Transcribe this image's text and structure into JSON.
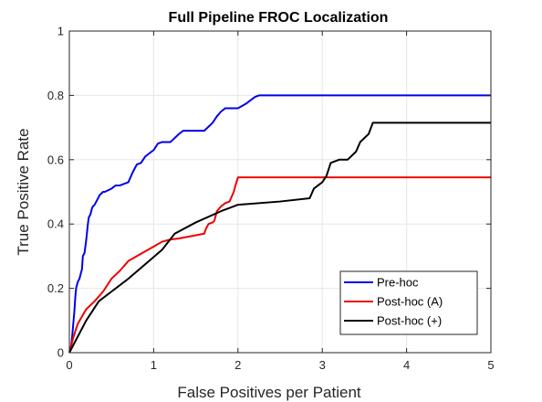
{
  "chart_data": {
    "type": "line",
    "title": "Full Pipeline FROC Localization",
    "xlabel": "False Positives per Patient",
    "ylabel": "True Positive Rate",
    "xlim": [
      0,
      5
    ],
    "ylim": [
      0,
      1
    ],
    "xticks": [
      0,
      1,
      2,
      3,
      4,
      5
    ],
    "yticks": [
      0,
      0.2,
      0.4,
      0.6,
      0.8,
      1
    ],
    "ytick_labels": [
      "0",
      "0.2",
      "0.4",
      "0.6",
      "0.8",
      "1"
    ],
    "grid": true,
    "legend_position": "bottom-right",
    "series": [
      {
        "name": "Pre-hoc",
        "color": "#0000ee",
        "x": [
          0,
          0.02,
          0.03,
          0.04,
          0.05,
          0.06,
          0.07,
          0.08,
          0.1,
          0.12,
          0.13,
          0.15,
          0.16,
          0.18,
          0.2,
          0.22,
          0.23,
          0.25,
          0.26,
          0.27,
          0.28,
          0.3,
          0.32,
          0.34,
          0.36,
          0.38,
          0.4,
          0.42,
          0.5,
          0.55,
          0.6,
          0.7,
          0.75,
          0.8,
          0.85,
          0.9,
          0.95,
          1.0,
          1.05,
          1.1,
          1.2,
          1.3,
          1.35,
          1.6,
          1.7,
          1.75,
          1.8,
          1.85,
          2.0,
          2.1,
          2.2,
          2.25,
          5.0
        ],
        "y": [
          0,
          0.02,
          0.04,
          0.07,
          0.1,
          0.13,
          0.17,
          0.2,
          0.22,
          0.23,
          0.24,
          0.26,
          0.3,
          0.31,
          0.35,
          0.4,
          0.42,
          0.43,
          0.44,
          0.45,
          0.455,
          0.46,
          0.47,
          0.48,
          0.49,
          0.495,
          0.5,
          0.5,
          0.51,
          0.52,
          0.52,
          0.53,
          0.56,
          0.585,
          0.59,
          0.61,
          0.62,
          0.63,
          0.65,
          0.655,
          0.655,
          0.68,
          0.69,
          0.69,
          0.715,
          0.735,
          0.75,
          0.76,
          0.76,
          0.775,
          0.795,
          0.8,
          0.8
        ]
      },
      {
        "name": "Post-hoc (A)",
        "color": "#ee0000",
        "x": [
          0,
          0.05,
          0.1,
          0.2,
          0.3,
          0.4,
          0.5,
          0.6,
          0.7,
          0.8,
          0.9,
          1.0,
          1.1,
          1.2,
          1.3,
          1.5,
          1.6,
          1.62,
          1.65,
          1.7,
          1.72,
          1.75,
          1.8,
          1.85,
          1.9,
          1.95,
          1.97,
          2.0,
          5.0
        ],
        "y": [
          0,
          0.05,
          0.09,
          0.135,
          0.16,
          0.19,
          0.23,
          0.255,
          0.285,
          0.3,
          0.315,
          0.33,
          0.345,
          0.352,
          0.355,
          0.365,
          0.37,
          0.385,
          0.4,
          0.405,
          0.41,
          0.44,
          0.455,
          0.465,
          0.47,
          0.5,
          0.52,
          0.545,
          0.545
        ]
      },
      {
        "name": "Post-hoc (+)",
        "color": "#000000",
        "x": [
          0,
          0.1,
          0.2,
          0.35,
          0.5,
          0.7,
          0.9,
          1.1,
          1.25,
          1.5,
          1.8,
          2.0,
          2.5,
          2.85,
          2.9,
          3.0,
          3.05,
          3.1,
          3.2,
          3.3,
          3.4,
          3.45,
          3.55,
          3.6,
          5.0
        ],
        "y": [
          0,
          0.05,
          0.1,
          0.16,
          0.19,
          0.23,
          0.275,
          0.32,
          0.37,
          0.405,
          0.44,
          0.46,
          0.47,
          0.48,
          0.51,
          0.53,
          0.55,
          0.59,
          0.6,
          0.6,
          0.625,
          0.655,
          0.68,
          0.715,
          0.715
        ]
      }
    ]
  }
}
